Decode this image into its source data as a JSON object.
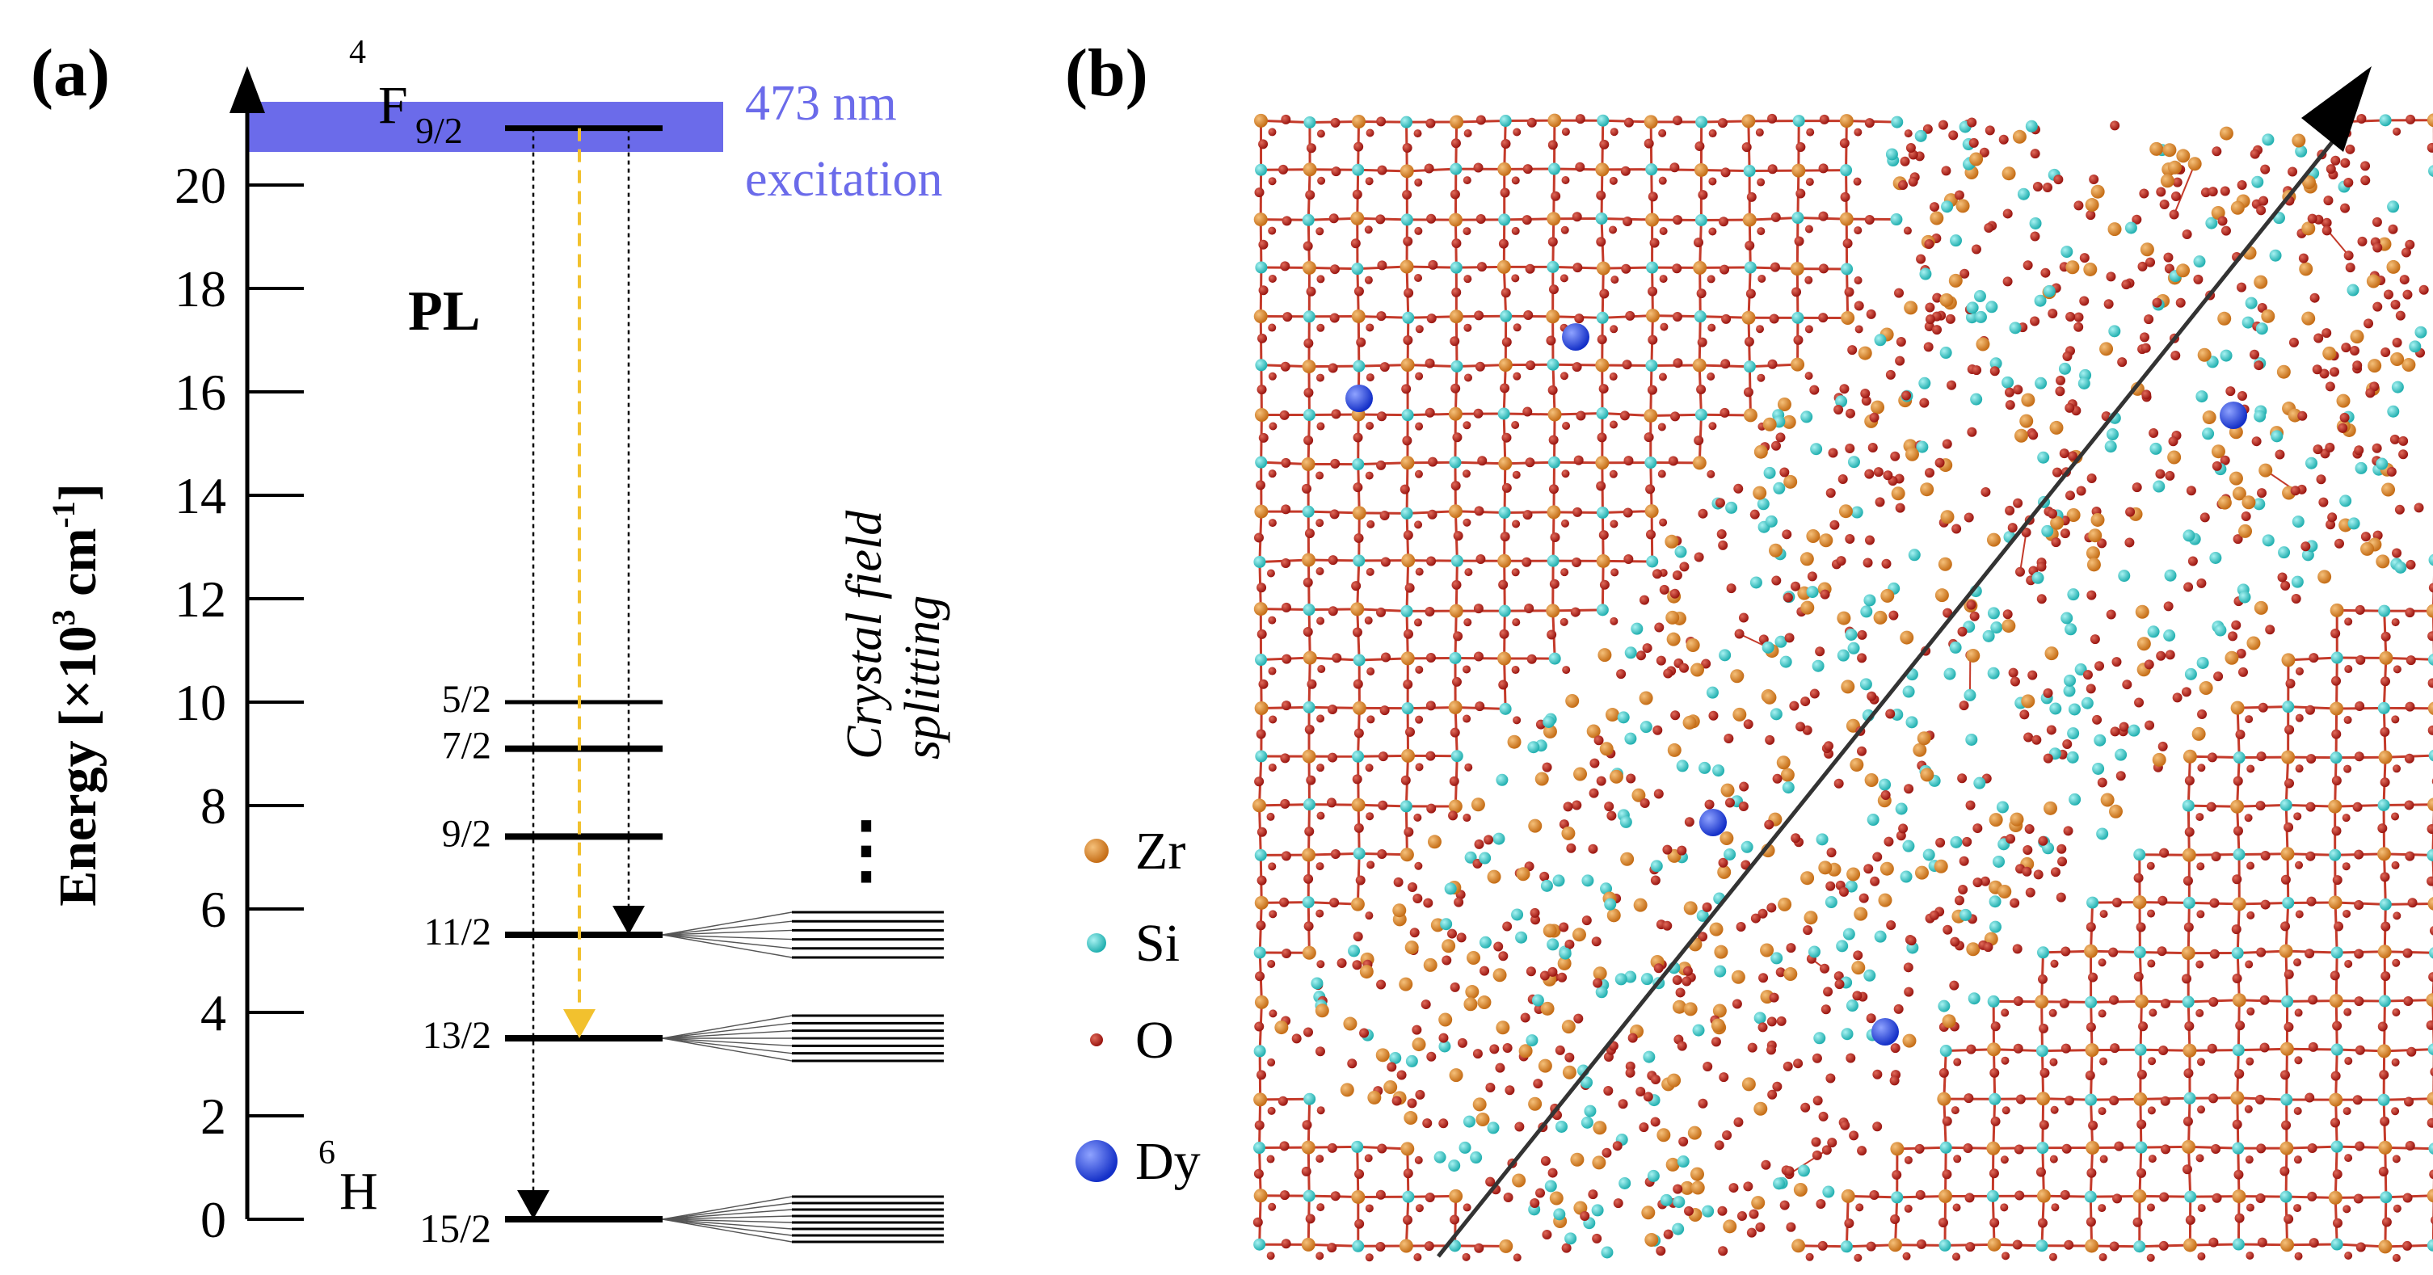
{
  "panel_a": {
    "label": "(a)",
    "axis": {
      "label_main": "Energy  [×10",
      "label_exp1": "3",
      "label_mid": " cm",
      "label_exp2": "-1",
      "label_end": "]",
      "ticks": [
        0,
        2,
        4,
        6,
        8,
        10,
        12,
        14,
        16,
        18,
        20
      ],
      "ymin": 0,
      "ymax": 21.3
    },
    "excitation": {
      "wavelength_label": "473 nm",
      "word_label": "excitation",
      "color": "#6b6bea",
      "energy": 21.14
    },
    "upper_state": {
      "sup": "4",
      "symbol": "F",
      "sub": "9/2",
      "energy": 21.1
    },
    "ground_term": {
      "sup": "6",
      "symbol": "H"
    },
    "levels": [
      {
        "label": "15/2",
        "energy": 0.0,
        "bold": true
      },
      {
        "label": "13/2",
        "energy": 3.5,
        "bold": true
      },
      {
        "label": "11/2",
        "energy": 5.5,
        "bold": true
      },
      {
        "label": "9/2",
        "energy": 7.4,
        "bold": true
      },
      {
        "label": "7/2",
        "energy": 9.1,
        "bold": true
      },
      {
        "label": "5/2",
        "energy": 10.0,
        "bold": false
      }
    ],
    "pl_label": "PL",
    "transitions": [
      {
        "from": 21.1,
        "to": 0.0,
        "style": "dotted",
        "color": "#000000"
      },
      {
        "from": 21.1,
        "to": 3.5,
        "style": "dashed",
        "color": "#f2c12e"
      },
      {
        "from": 21.1,
        "to": 5.5,
        "style": "dotted",
        "color": "#000000"
      }
    ],
    "splitting_groups": [
      {
        "base": 5.5,
        "count": 6
      },
      {
        "base": 3.5,
        "count": 7
      },
      {
        "base": 0.0,
        "count": 8
      }
    ],
    "splitting_label_line1": "Crystal field",
    "splitting_label_line2": "splitting",
    "ellipsis": "⋮"
  },
  "panel_b": {
    "label": "(b)",
    "legend": [
      {
        "label": "Zr",
        "color": "#d9822b"
      },
      {
        "label": "Si",
        "color": "#3cc6c6"
      },
      {
        "label": "O",
        "color": "#b4201a"
      },
      {
        "label": "Dy",
        "color": "#1f3fe0"
      }
    ],
    "lattice_colors": {
      "bond": "#c43a2a",
      "oxygen": "#c8261c",
      "zr": "#d9822b",
      "si": "#3cc6c6",
      "dy": "#1f3fe0"
    }
  }
}
